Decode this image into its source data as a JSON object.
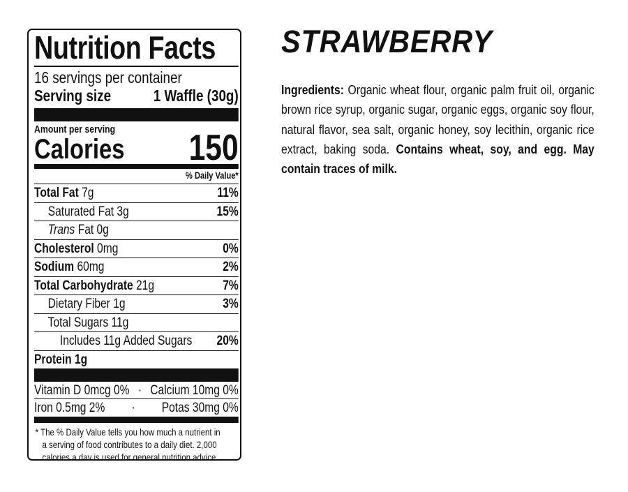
{
  "label": {
    "title": "Nutrition Facts",
    "servings_per_container": "16 servings per container",
    "serving_size_label": "Serving size",
    "serving_size_value": "1 Waffle (30g)",
    "amount_per_serving": "Amount per serving",
    "calories_label": "Calories",
    "calories_value": "150",
    "daily_value_header": "% Daily Value*",
    "nutrients": [
      {
        "name": "Total Fat",
        "amount": "7g",
        "dv": "11%"
      },
      {
        "name": "Saturated Fat",
        "amount": "3g",
        "dv": "15%"
      },
      {
        "name": "Trans",
        "suffix": "Fat",
        "amount": "0g",
        "dv": ""
      },
      {
        "name": "Cholesterol",
        "amount": "0mg",
        "dv": "0%"
      },
      {
        "name": "Sodium",
        "amount": "60mg",
        "dv": "2%"
      },
      {
        "name": "Total Carbohydrate",
        "amount": "21g",
        "dv": "7%"
      },
      {
        "name": "Dietary Fiber",
        "amount": "1g",
        "dv": "3%"
      },
      {
        "name": "Total Sugars",
        "amount": "11g",
        "dv": ""
      },
      {
        "name": "Includes 11g Added Sugars",
        "amount": "",
        "dv": "20%"
      },
      {
        "name": "Protein",
        "amount": "1g",
        "dv": ""
      }
    ],
    "vitamins": [
      {
        "left": "Vitamin D 0mcg 0%",
        "separator": "·",
        "right": "Calcium 10mg 0%"
      },
      {
        "left": "Iron 0.5mg 2%",
        "separator": "·",
        "right": "Potas 30mg 0%"
      }
    ],
    "footnote": [
      "* The % Daily Value tells you how much a nutrient in",
      "a serving of food contributes to a daily diet. 2,000",
      "calories a day is used for general nutrition advice."
    ]
  },
  "product": {
    "flavor": "STRAWBERRY",
    "ingredients_label": "Ingredients:",
    "ingredients_text": " Organic wheat flour, organic palm fruit oil, organic brown rice syrup, organic sugar, organic eggs, organic soy flour, natural flavor, sea salt, organic honey, soy lecithin, organic rice extract, baking soda. ",
    "allergen_statement": "Contains wheat, soy, and egg. May contain traces of milk."
  }
}
